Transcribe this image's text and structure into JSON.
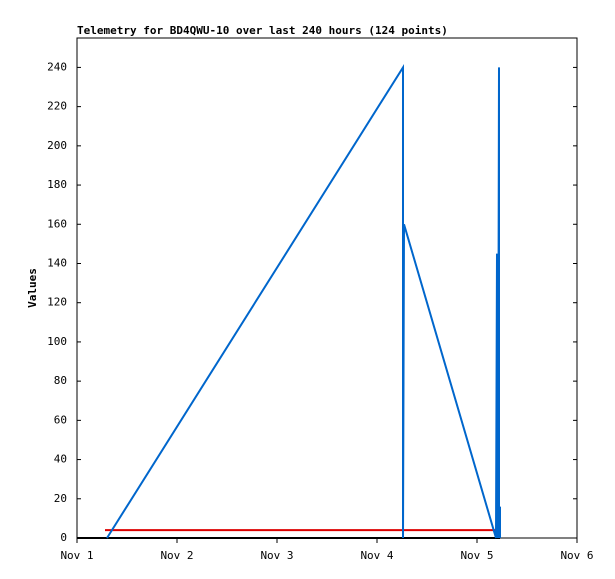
{
  "chart_data": {
    "type": "line",
    "title": "Telemetry for BD4QWU-10 over last 240 hours (124 points)",
    "y_label": "Values",
    "xlim": [
      1,
      6
    ],
    "xticks": [
      {
        "value": 1,
        "label": "Nov 1"
      },
      {
        "value": 2,
        "label": "Nov 2"
      },
      {
        "value": 3,
        "label": "Nov 3"
      },
      {
        "value": 4,
        "label": "Nov 4"
      },
      {
        "value": 5,
        "label": "Nov 5"
      },
      {
        "value": 6,
        "label": "Nov 6"
      }
    ],
    "ylim": [
      0,
      255
    ],
    "yticks": [
      0,
      20,
      40,
      60,
      80,
      100,
      120,
      140,
      160,
      180,
      200,
      220,
      240
    ],
    "series": [
      {
        "color": "#000000",
        "x": [
          1,
          5.23
        ],
        "values": [
          0,
          0
        ]
      },
      {
        "color": "#dd0000",
        "x": [
          1.28,
          5.2
        ],
        "values": [
          4,
          4
        ]
      },
      {
        "color": "#0066cc",
        "x": [
          1.3,
          4.26,
          4.26,
          4.27,
          5.19,
          5.2,
          5.21,
          5.22,
          5.22,
          5.23,
          5.23
        ],
        "values": [
          0,
          240,
          0,
          160,
          0,
          145,
          0,
          240,
          0,
          16,
          0
        ]
      }
    ]
  }
}
